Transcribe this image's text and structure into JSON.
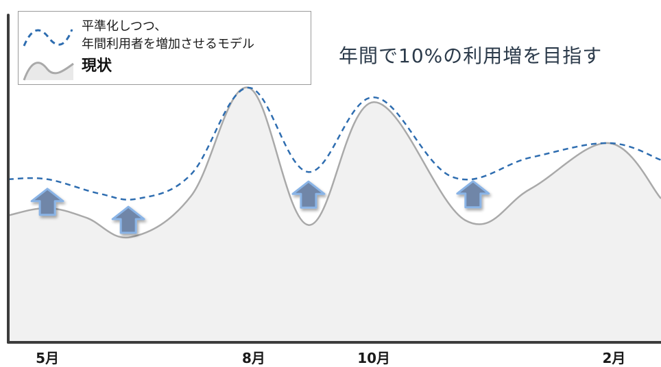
{
  "legend": {
    "target_label_line1": "平準化しつつ、",
    "target_label_line2": "年間利用者を増加させるモデル",
    "current_label": "現状"
  },
  "headline": "年間で10%の利用増を目指す",
  "colors": {
    "target_line": "#2e6db0",
    "current_line": "#a9a9a9",
    "current_fill": "#f1f1f1",
    "axis": "#3c3c3c",
    "arrow_fill": "#6f86a8",
    "arrow_stroke": "#8ab4e6"
  },
  "chart_data": {
    "type": "area",
    "x_tick_labels": [
      {
        "label": "5月",
        "x": 1.5
      },
      {
        "label": "8月",
        "x": 9.4
      },
      {
        "label": "10月",
        "x": 14.0
      },
      {
        "label": "2月",
        "x": 23.2
      }
    ],
    "xlim": [
      0,
      25
    ],
    "ylim": [
      0,
      100
    ],
    "grid": false,
    "legend_position": "top-left",
    "series": [
      {
        "style": "dashed-line",
        "x": [
          0,
          1.5,
          3.5,
          5.0,
          7.0,
          9.2,
          11.5,
          14.0,
          17.0,
          20.0,
          23.0,
          25.0
        ],
        "values": [
          62,
          62,
          56,
          54,
          64,
          100,
          65,
          96,
          63,
          71,
          77,
          70
        ]
      },
      {
        "style": "area",
        "x": [
          0,
          1.5,
          3.0,
          4.7,
          7.0,
          9.2,
          11.5,
          14.0,
          17.5,
          20.0,
          23.0,
          25.0
        ],
        "values": [
          47,
          50,
          46,
          38,
          55,
          100,
          43,
          94,
          45,
          58,
          77,
          54
        ]
      }
    ],
    "annotations": [
      {
        "type": "up-arrow",
        "x": 1.5
      },
      {
        "type": "up-arrow",
        "x": 4.6
      },
      {
        "type": "up-arrow",
        "x": 11.5
      },
      {
        "type": "up-arrow",
        "x": 17.8
      }
    ]
  }
}
